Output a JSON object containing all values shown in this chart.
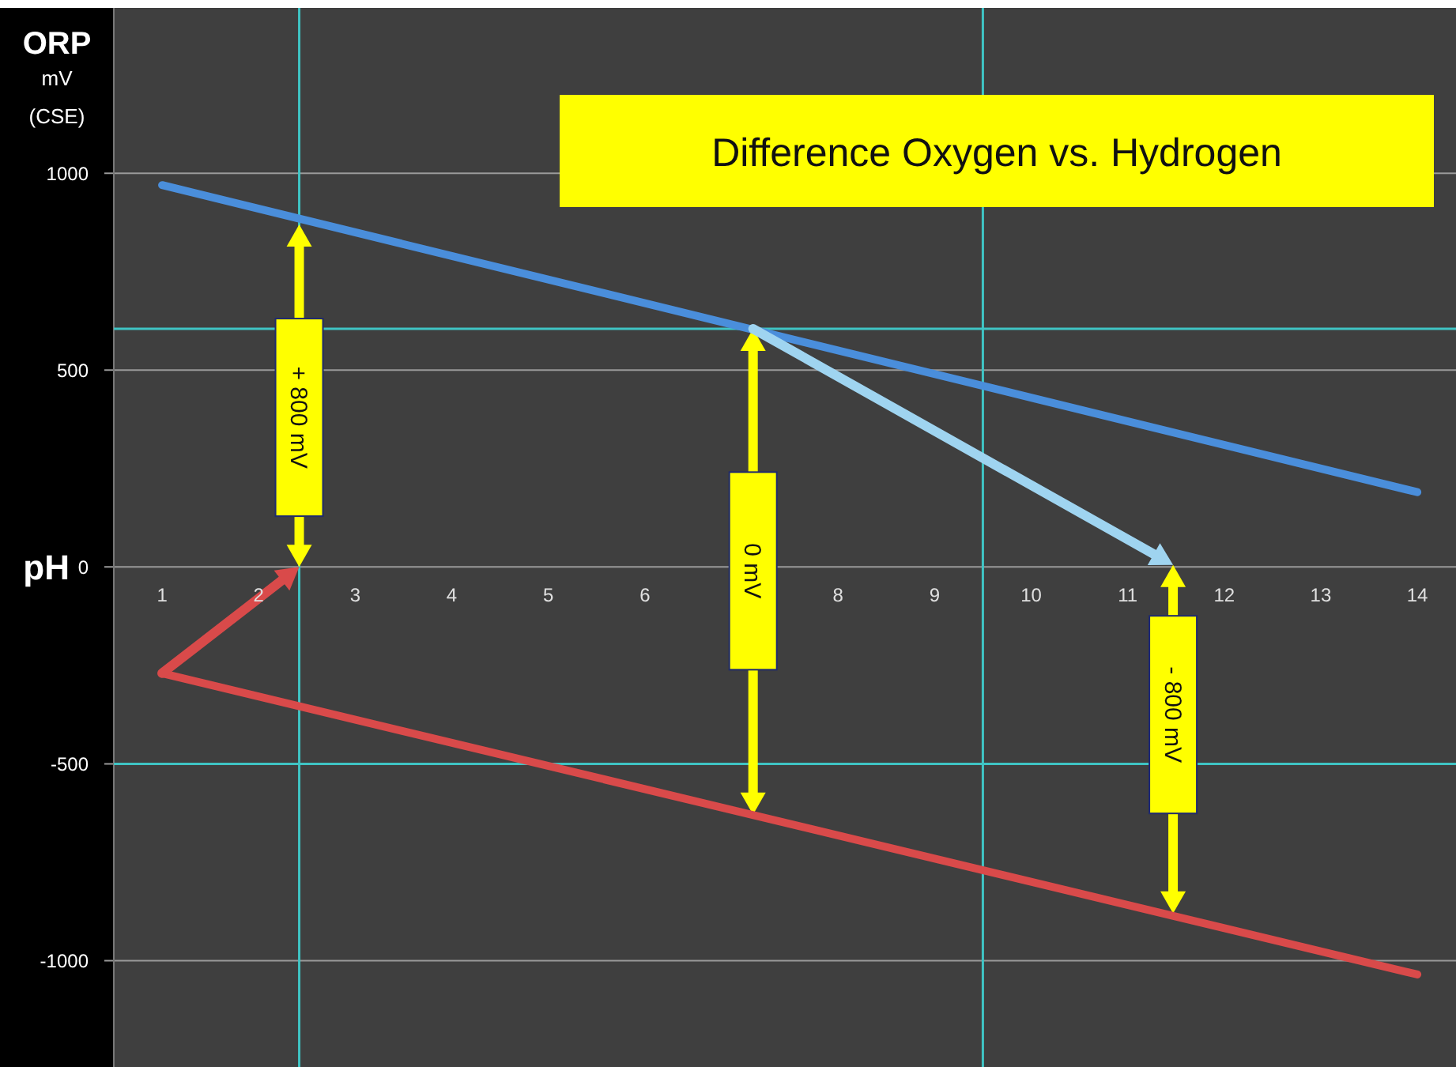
{
  "chart_data": {
    "type": "line",
    "title": "Difference Oxygen vs. Hydrogen",
    "xlabel": "pH",
    "ylabel": "ORP\nmV\n(CSE)",
    "xlim": [
      0.5,
      14.4
    ],
    "ylim": [
      -1270,
      1420
    ],
    "xticks": [
      1,
      2,
      3,
      4,
      5,
      6,
      8,
      9,
      10,
      11,
      12,
      13,
      14
    ],
    "yticks": [
      -1000,
      -500,
      0,
      500,
      1000
    ],
    "grid": "y",
    "line_style": "solid",
    "x": [
      1,
      14
    ],
    "series": [
      {
        "color": "#4a8edb",
        "values": [
          970,
          190
        ]
      },
      {
        "color": "#d94a4a",
        "values": [
          -270,
          -1035
        ]
      }
    ],
    "ref_lines": [
      {
        "axis": "x",
        "value": 2.42,
        "color": "#3fc4c4"
      },
      {
        "axis": "x",
        "value": 9.5,
        "color": "#3fc4c4"
      },
      {
        "axis": "y",
        "value": 605,
        "color": "#3fc4c4"
      },
      {
        "axis": "y",
        "value": -500,
        "color": "#3fc4c4"
      }
    ],
    "annotations": [
      "+ 800 mV",
      "0 mV",
      "- 800 mV"
    ]
  }
}
